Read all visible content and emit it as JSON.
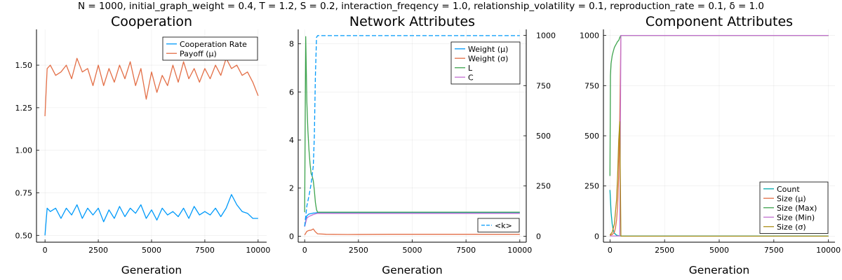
{
  "figure": {
    "suptitle": "N = 1000, initial_graph_weight = 0.4, T = 1.2, S = 0.2, interaction_freqency = 1.0, relationship_volatility = 0.1, reproduction_rate = 0.1, δ = 1.0"
  },
  "colors": {
    "blue": "#009AFA",
    "orange": "#E36F47",
    "green": "#3EA44E",
    "purple": "#C371D2",
    "gold": "#AC8E18",
    "teal": "#00A9AD"
  },
  "chart_data": [
    {
      "type": "line",
      "title": "Cooperation",
      "xlabel": "Generation",
      "ylabel": "",
      "xlim": [
        -400,
        10400
      ],
      "ylim": [
        0.46,
        1.71
      ],
      "xticks": [
        0,
        2500,
        5000,
        7500,
        10000
      ],
      "xtick_labels": [
        "0",
        "2500",
        "5000",
        "7500",
        "10000"
      ],
      "yticks": [
        0.5,
        0.75,
        1.0,
        1.25,
        1.5
      ],
      "ytick_labels": [
        "0.50",
        "0.75",
        "1.00",
        "1.25",
        "1.50"
      ],
      "grid": true,
      "legend": "top-right",
      "series": [
        {
          "name": "Cooperation Rate",
          "color": "#009AFA",
          "x": [
            0,
            100,
            250,
            500,
            750,
            1000,
            1250,
            1500,
            1750,
            2000,
            2250,
            2500,
            2750,
            3000,
            3250,
            3500,
            3750,
            4000,
            4250,
            4500,
            4750,
            5000,
            5250,
            5500,
            5750,
            6000,
            6250,
            6500,
            6750,
            7000,
            7250,
            7500,
            7750,
            8000,
            8250,
            8500,
            8750,
            9000,
            9250,
            9500,
            9750,
            10000
          ],
          "y": [
            0.5,
            0.66,
            0.64,
            0.66,
            0.6,
            0.66,
            0.62,
            0.68,
            0.6,
            0.66,
            0.62,
            0.66,
            0.58,
            0.65,
            0.6,
            0.67,
            0.61,
            0.66,
            0.63,
            0.68,
            0.6,
            0.65,
            0.59,
            0.66,
            0.62,
            0.64,
            0.61,
            0.66,
            0.6,
            0.67,
            0.62,
            0.64,
            0.62,
            0.66,
            0.61,
            0.66,
            0.74,
            0.68,
            0.64,
            0.63,
            0.6,
            0.6
          ]
        },
        {
          "name": "Payoff (μ)",
          "color": "#E36F47",
          "x": [
            0,
            100,
            250,
            500,
            750,
            1000,
            1250,
            1500,
            1750,
            2000,
            2250,
            2500,
            2750,
            3000,
            3250,
            3500,
            3750,
            4000,
            4250,
            4500,
            4750,
            5000,
            5250,
            5500,
            5750,
            6000,
            6250,
            6500,
            6750,
            7000,
            7250,
            7500,
            7750,
            8000,
            8250,
            8500,
            8750,
            9000,
            9250,
            9500,
            9750,
            10000
          ],
          "y": [
            1.2,
            1.48,
            1.5,
            1.44,
            1.46,
            1.5,
            1.42,
            1.54,
            1.46,
            1.48,
            1.38,
            1.5,
            1.38,
            1.48,
            1.4,
            1.5,
            1.42,
            1.52,
            1.38,
            1.48,
            1.3,
            1.46,
            1.34,
            1.44,
            1.38,
            1.5,
            1.4,
            1.52,
            1.42,
            1.48,
            1.4,
            1.48,
            1.42,
            1.5,
            1.44,
            1.54,
            1.48,
            1.5,
            1.44,
            1.46,
            1.4,
            1.32
          ]
        }
      ]
    },
    {
      "type": "line",
      "title": "Network Attributes",
      "xlabel": "Generation",
      "ylabel": "",
      "xlim": [
        -300,
        10300
      ],
      "ylim": [
        -0.25,
        8.6
      ],
      "y2lim": [
        -30,
        1030
      ],
      "xticks": [
        0,
        2500,
        5000,
        7500,
        10000
      ],
      "xtick_labels": [
        "0",
        "2500",
        "5000",
        "7500",
        "10000"
      ],
      "yticks": [
        0,
        2,
        4,
        6,
        8
      ],
      "ytick_labels": [
        "0",
        "2",
        "4",
        "6",
        "8"
      ],
      "y2ticks": [
        0,
        250,
        500,
        750,
        1000
      ],
      "y2tick_labels": [
        "0",
        "250",
        "500",
        "750",
        "1000"
      ],
      "grid": true,
      "legend": "top-right",
      "legend2": "bottom-right",
      "series": [
        {
          "name": "Weight (μ)",
          "color": "#009AFA",
          "axis": "left",
          "x": [
            0,
            100,
            200,
            300,
            400,
            500,
            600,
            1000,
            2000,
            4000,
            6000,
            8000,
            10000
          ],
          "y": [
            0.4,
            0.85,
            0.92,
            0.94,
            0.96,
            0.97,
            0.98,
            0.98,
            0.97,
            0.97,
            0.97,
            0.97,
            0.97
          ]
        },
        {
          "name": "Weight (σ)",
          "color": "#E36F47",
          "axis": "left",
          "x": [
            0,
            100,
            200,
            300,
            400,
            500,
            600,
            1000,
            2000,
            4000,
            6000,
            8000,
            10000
          ],
          "y": [
            0.05,
            0.2,
            0.24,
            0.25,
            0.3,
            0.18,
            0.1,
            0.08,
            0.07,
            0.08,
            0.08,
            0.08,
            0.08
          ]
        },
        {
          "name": "L",
          "color": "#3EA44E",
          "axis": "left",
          "x": [
            0,
            50,
            100,
            150,
            200,
            250,
            300,
            350,
            400,
            450,
            500,
            550,
            600,
            1000,
            2000,
            4000,
            6000,
            8000,
            10000
          ],
          "y": [
            1.0,
            8.3,
            5.6,
            4.4,
            3.6,
            3.0,
            2.6,
            2.5,
            2.3,
            1.9,
            1.4,
            1.1,
            1.0,
            1.0,
            1.0,
            1.0,
            1.0,
            1.0,
            1.0
          ]
        },
        {
          "name": "C",
          "color": "#C371D2",
          "axis": "left",
          "x": [
            0,
            100,
            200,
            300,
            400,
            500,
            600,
            1000,
            2000,
            4000,
            6000,
            8000,
            10000
          ],
          "y": [
            0.4,
            0.75,
            0.82,
            0.86,
            0.9,
            0.93,
            0.95,
            0.95,
            0.95,
            0.95,
            0.95,
            0.95,
            0.95
          ]
        },
        {
          "name": "<k>",
          "color": "#009AFA",
          "axis": "right",
          "dashed": true,
          "x": [
            0,
            100,
            200,
            300,
            400,
            450,
            500,
            550,
            600,
            1000,
            4000,
            7000,
            10000
          ],
          "y": [
            50,
            150,
            200,
            260,
            350,
            500,
            800,
            990,
            999,
            999,
            999,
            999,
            999
          ]
        }
      ]
    },
    {
      "type": "line",
      "title": "Component Attributes",
      "xlabel": "Generation",
      "ylabel": "",
      "xlim": [
        -300,
        10300
      ],
      "ylim": [
        -30,
        1030
      ],
      "xticks": [
        0,
        2500,
        5000,
        7500,
        10000
      ],
      "xtick_labels": [
        "0",
        "2500",
        "5000",
        "7500",
        "10000"
      ],
      "yticks": [
        0,
        250,
        500,
        750,
        1000
      ],
      "ytick_labels": [
        "0",
        "250",
        "500",
        "750",
        "1000"
      ],
      "grid": true,
      "legend": "bottom-right",
      "series": [
        {
          "name": "Count",
          "color": "#00A9AD",
          "x": [
            0,
            50,
            100,
            150,
            200,
            300,
            400,
            500,
            600,
            1000,
            4000,
            7000,
            10000
          ],
          "y": [
            230,
            120,
            60,
            30,
            15,
            5,
            2,
            1,
            1,
            1,
            1,
            1,
            1
          ]
        },
        {
          "name": "Size (μ)",
          "color": "#E36F47",
          "x": [
            0,
            100,
            200,
            250,
            300,
            350,
            400,
            450,
            500,
            550,
            600,
            1000,
            4000,
            7000,
            10000
          ],
          "y": [
            4,
            8,
            20,
            40,
            80,
            150,
            300,
            600,
            1000,
            1000,
            1000,
            1000,
            1000,
            1000,
            1000
          ]
        },
        {
          "name": "Size (Max)",
          "color": "#3EA44E",
          "x": [
            0,
            20,
            50,
            100,
            150,
            200,
            250,
            300,
            350,
            400,
            450,
            500,
            550,
            600,
            1000,
            4000,
            7000,
            10000
          ],
          "y": [
            300,
            800,
            860,
            900,
            920,
            940,
            950,
            960,
            970,
            975,
            990,
            1000,
            1000,
            1000,
            1000,
            1000,
            1000,
            1000
          ]
        },
        {
          "name": "Size (Min)",
          "color": "#C371D2",
          "x": [
            0,
            100,
            200,
            300,
            400,
            450,
            500,
            550,
            600,
            1000,
            4000,
            7000,
            10000
          ],
          "y": [
            1,
            1,
            1,
            1,
            1,
            1,
            1000,
            1000,
            1000,
            1000,
            1000,
            1000,
            1000
          ]
        },
        {
          "name": "Size (σ)",
          "color": "#AC8E18",
          "x": [
            0,
            100,
            200,
            300,
            350,
            400,
            450,
            500,
            550,
            600,
            1000,
            4000,
            7000,
            10000
          ],
          "y": [
            5,
            20,
            60,
            180,
            300,
            480,
            570,
            0,
            0,
            0,
            0,
            0,
            0,
            0
          ]
        }
      ]
    }
  ]
}
